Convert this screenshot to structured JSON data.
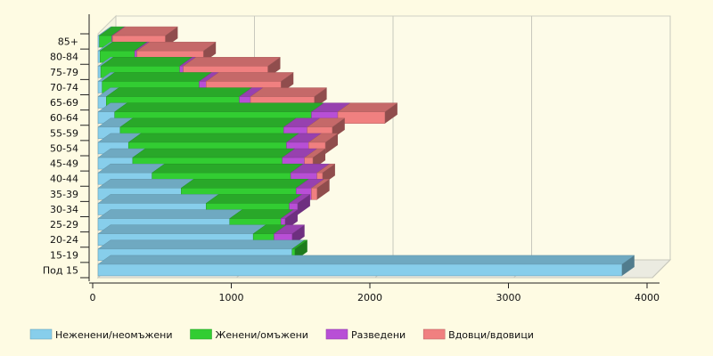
{
  "chart_data": {
    "type": "bar",
    "orientation": "horizontal",
    "stacked": true,
    "style": "3d",
    "categories": [
      "Под 15",
      "15-19",
      "20-24",
      "25-29",
      "30-34",
      "35-39",
      "40-44",
      "45-49",
      "50-54",
      "55-59",
      "60-64",
      "65-69",
      "70-74",
      "75-79",
      "80-84",
      "85+"
    ],
    "series": [
      {
        "name": "Неженени/неомъжени",
        "color": "#87ceeb",
        "values": [
          3780,
          1400,
          1120,
          950,
          780,
          600,
          390,
          250,
          220,
          160,
          120,
          60,
          30,
          20,
          15,
          10
        ]
      },
      {
        "name": "Женени/омъжени",
        "color": "#32cd32",
        "values": [
          0,
          20,
          150,
          370,
          600,
          830,
          1000,
          1080,
          1140,
          1180,
          1420,
          960,
          700,
          570,
          250,
          90
        ]
      },
      {
        "name": "Разведени",
        "color": "#b84fd6",
        "values": [
          0,
          0,
          130,
          30,
          60,
          110,
          190,
          160,
          160,
          170,
          190,
          80,
          50,
          25,
          15,
          5
        ]
      },
      {
        "name": "Вдовци/вдовици",
        "color": "#f08080",
        "values": [
          0,
          0,
          0,
          0,
          0,
          40,
          40,
          60,
          120,
          180,
          340,
          460,
          540,
          610,
          480,
          380
        ]
      }
    ],
    "x_axis": {
      "range": [
        0,
        4000
      ],
      "ticks": [
        "0",
        "1000",
        "2000",
        "3000",
        "4000"
      ]
    },
    "grid": true,
    "legend": "bottom"
  }
}
